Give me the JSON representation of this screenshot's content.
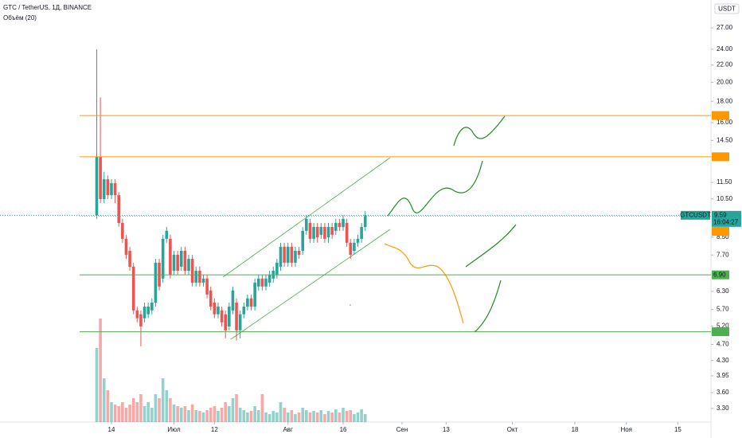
{
  "chart_data": {
    "type": "candlestick",
    "title": "GTC / TetherUS, 1Д, BINANCE",
    "indicator": "Объём (20)",
    "currency": "USDT",
    "log_scale": true,
    "grid": false,
    "up_color": "#26a69a",
    "down_color": "#ef5350",
    "xlim": [
      -17.3,
      176
    ],
    "ylim": [
      3.06,
      31.5
    ],
    "xticks": [
      {
        "value": 13,
        "label": "14"
      },
      {
        "value": 30,
        "label": "Июл"
      },
      {
        "value": 41,
        "label": "12"
      },
      {
        "value": 61,
        "label": "Авг"
      },
      {
        "value": 76,
        "label": "16"
      },
      {
        "value": 92,
        "label": "Сен"
      },
      {
        "value": 104,
        "label": "13"
      },
      {
        "value": 122,
        "label": "Окт"
      },
      {
        "value": 139,
        "label": "18"
      },
      {
        "value": 153,
        "label": "Ноя"
      },
      {
        "value": 167,
        "label": "15"
      }
    ],
    "yticks": [
      {
        "value": 27,
        "label": "27.00"
      },
      {
        "value": 24,
        "label": "24.00"
      },
      {
        "value": 22,
        "label": "22.00"
      },
      {
        "value": 20,
        "label": "20.00"
      },
      {
        "value": 18,
        "label": "18.00"
      },
      {
        "value": 16,
        "label": "16.00"
      },
      {
        "value": 14.5,
        "label": "14.50"
      },
      {
        "value": 11.5,
        "label": "11.50"
      },
      {
        "value": 10.5,
        "label": "10.50"
      },
      {
        "value": 8.5,
        "label": "8.50"
      },
      {
        "value": 7.7,
        "label": "7.70"
      },
      {
        "value": 6.3,
        "label": "6.30"
      },
      {
        "value": 5.7,
        "label": "5.70"
      },
      {
        "value": 5.2,
        "label": "5.20"
      },
      {
        "value": 4.7,
        "label": "4.70"
      },
      {
        "value": 4.3,
        "label": "4.30"
      },
      {
        "value": 3.95,
        "label": "3.95"
      },
      {
        "value": 3.6,
        "label": "3.60"
      },
      {
        "value": 3.3,
        "label": "3.30"
      }
    ],
    "x": [
      9,
      10,
      11,
      12,
      13,
      14,
      15,
      16,
      17,
      18,
      19,
      20,
      21,
      22,
      23,
      24,
      25,
      26,
      27,
      28,
      29,
      30,
      31,
      32,
      33,
      34,
      35,
      36,
      37,
      38,
      39,
      40,
      41,
      42,
      43,
      44,
      45,
      46,
      47,
      48,
      49,
      50,
      51,
      52,
      53,
      54,
      55,
      56,
      57,
      58,
      59,
      60,
      61,
      62,
      63,
      64,
      65,
      66,
      67,
      68,
      69,
      70,
      71,
      72,
      73,
      74,
      75,
      76,
      77,
      78,
      79,
      80,
      81,
      82
    ],
    "open": [
      9.59,
      13.25,
      10.49,
      11.7,
      10.72,
      11.45,
      10.72,
      9.19,
      8.42,
      7.88,
      7.22,
      5.67,
      5.55,
      5.43,
      5.55,
      5.67,
      5.92,
      7.38,
      6.76,
      8.42,
      8.42,
      7.06,
      7.71,
      7.22,
      7.88,
      7.06,
      7.54,
      6.61,
      7.06,
      6.61,
      6.76,
      6.33,
      5.92,
      5.55,
      5.67,
      5.55,
      5.19,
      5.67,
      5.92,
      5.08,
      5.55,
      5.79,
      6.06,
      5.79,
      6.47,
      6.76,
      6.47,
      6.61,
      6.76,
      6.91,
      7.22,
      8.06,
      7.38,
      8.06,
      7.38,
      7.88,
      7.88,
      8.8,
      9.19,
      8.42,
      8.99,
      8.61,
      8.99,
      8.49,
      8.99,
      8.8,
      9.19,
      8.99,
      9.19,
      8.24,
      7.88,
      8.24,
      8.42,
      8.99
    ],
    "high": [
      24,
      18.4,
      12.2,
      11.95,
      11.7,
      11.7,
      10.9,
      9.4,
      8.6,
      8.06,
      7.38,
      5.79,
      5.67,
      5.92,
      5.92,
      6.06,
      7.54,
      7.54,
      8.61,
      8.99,
      8.61,
      7.88,
      7.88,
      8.06,
      8.06,
      7.71,
      7.71,
      7.22,
      7.22,
      6.91,
      6.91,
      6.47,
      6.06,
      5.92,
      5.79,
      5.67,
      5.92,
      6.47,
      6.06,
      5.67,
      5.92,
      6.19,
      6.19,
      6.76,
      6.91,
      6.91,
      6.91,
      7.06,
      7.22,
      7.54,
      8.24,
      8.24,
      8.24,
      8.24,
      8.06,
      8.06,
      8.99,
      9.59,
      9.4,
      9.19,
      9.19,
      9.19,
      9.19,
      9.19,
      9.19,
      9.4,
      9.4,
      9.59,
      9.4,
      8.42,
      8.42,
      8.61,
      9.19,
      9.82
    ],
    "low": [
      9.4,
      10.26,
      10.26,
      10.49,
      10.49,
      10.26,
      9.0,
      8.24,
      7.54,
      7.06,
      5.55,
      5.31,
      4.65,
      5.31,
      5.43,
      5.55,
      5.79,
      6.33,
      6.61,
      8.24,
      6.76,
      6.91,
      6.91,
      7.06,
      6.91,
      6.91,
      6.47,
      6.47,
      6.47,
      6.47,
      6.06,
      5.67,
      5.43,
      5.43,
      5.19,
      4.86,
      5.08,
      5.55,
      4.8,
      4.86,
      5.43,
      5.67,
      5.67,
      5.67,
      6.33,
      6.33,
      6.33,
      6.47,
      6.61,
      6.76,
      7.06,
      7.22,
      7.22,
      7.22,
      7.22,
      7.54,
      7.71,
      8.61,
      8.24,
      8.24,
      8.24,
      8.42,
      8.24,
      8.24,
      8.42,
      8.61,
      8.8,
      8.8,
      8.06,
      7.54,
      7.71,
      8.06,
      8.24,
      8.8
    ],
    "close": [
      13.25,
      10.49,
      11.7,
      10.72,
      11.45,
      10.72,
      9.19,
      8.42,
      7.71,
      7.22,
      5.67,
      5.43,
      5.19,
      5.79,
      5.79,
      5.92,
      7.38,
      6.47,
      8.42,
      8.8,
      6.91,
      7.71,
      7.06,
      7.88,
      7.06,
      7.54,
      6.61,
      7.06,
      6.61,
      6.76,
      6.19,
      5.79,
      5.55,
      5.79,
      5.31,
      5.08,
      5.79,
      6.33,
      5.08,
      5.55,
      5.79,
      6.06,
      5.79,
      6.61,
      6.76,
      6.47,
      6.76,
      6.91,
      7.06,
      7.38,
      8.06,
      7.38,
      8.06,
      7.38,
      7.88,
      7.71,
      8.8,
      9.4,
      8.42,
      8.99,
      8.49,
      8.99,
      8.42,
      8.99,
      8.61,
      9.19,
      8.99,
      9.4,
      8.24,
      7.71,
      8.24,
      8.42,
      8.99,
      9.59
    ],
    "volume": [
      93,
      130,
      55,
      40,
      25,
      22,
      20,
      25,
      18,
      22,
      30,
      25,
      35,
      20,
      25,
      18,
      35,
      30,
      55,
      40,
      30,
      22,
      20,
      18,
      20,
      15,
      22,
      15,
      14,
      12,
      15,
      18,
      20,
      14,
      18,
      25,
      20,
      30,
      35,
      18,
      15,
      12,
      14,
      20,
      15,
      35,
      12,
      10,
      14,
      12,
      25,
      18,
      12,
      15,
      10,
      12,
      18,
      15,
      12,
      14,
      12,
      15,
      10,
      14,
      12,
      16,
      12,
      18,
      14,
      15,
      10,
      12,
      16,
      10
    ],
    "levels": [
      {
        "value": 16.64,
        "color": "#ff9800"
      },
      {
        "value": 13.25,
        "color": "#ff9800"
      },
      {
        "value": 9.54,
        "color": "#ff9800"
      },
      {
        "value": 6.9,
        "label": "6.90",
        "color": "#4caf50"
      },
      {
        "value": 5.04,
        "color": "#4caf50"
      }
    ],
    "last": {
      "symbol": "GTCUSDT",
      "price": 9.59,
      "countdown": "16:04:27",
      "color": "#26a69a"
    }
  }
}
